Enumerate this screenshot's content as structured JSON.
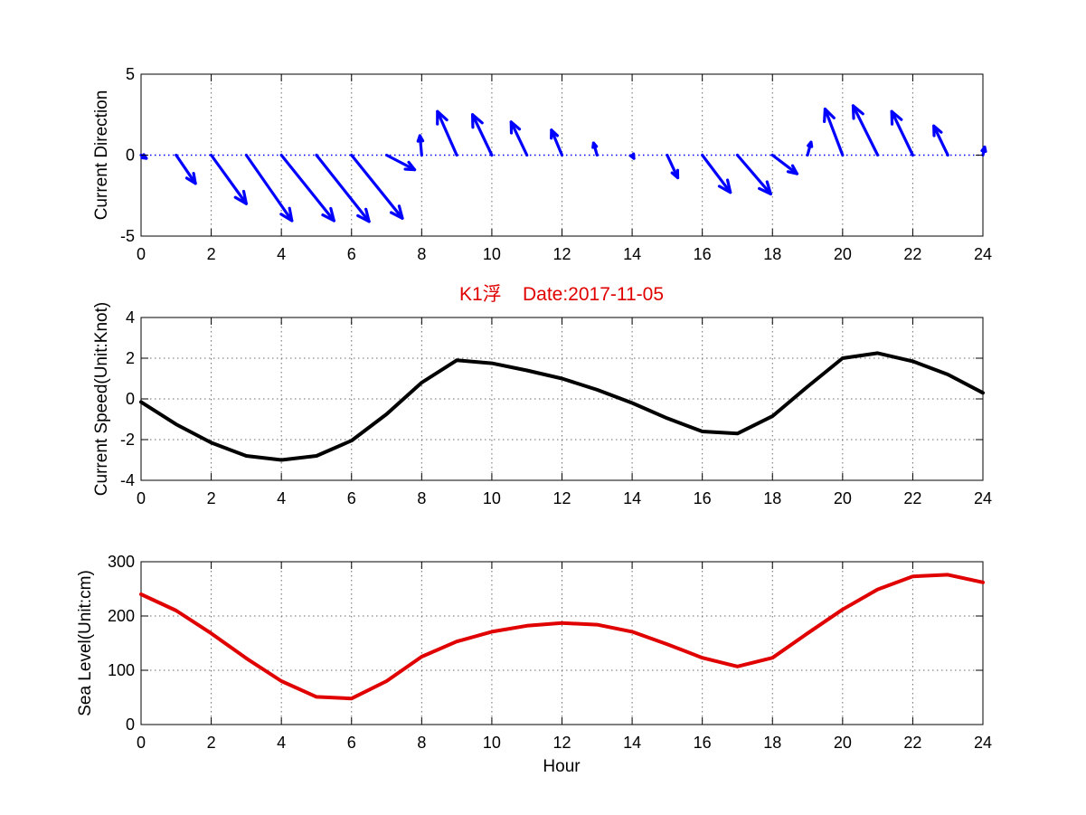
{
  "chart_data": [
    {
      "type": "quiver",
      "id": "direction",
      "title": "",
      "xlabel": "",
      "ylabel": "Current Direction",
      "xlim": [
        0,
        24
      ],
      "ylim": [
        -5,
        5
      ],
      "xticks": [
        0,
        2,
        4,
        6,
        8,
        10,
        12,
        14,
        16,
        18,
        20,
        22,
        24
      ],
      "yticks": [
        -5,
        0,
        5
      ],
      "grid": true,
      "color": "#0000ff",
      "x": [
        0,
        1,
        2,
        3,
        4,
        5,
        6,
        7,
        8,
        9,
        10,
        11,
        12,
        13,
        14,
        15,
        16,
        17,
        18,
        19,
        20,
        21,
        22,
        23,
        24
      ],
      "u": [
        0.15,
        0.55,
        1.0,
        1.3,
        1.5,
        1.5,
        1.45,
        0.8,
        -0.05,
        -0.55,
        -0.55,
        -0.45,
        -0.3,
        -0.1,
        0.05,
        0.3,
        0.8,
        0.95,
        0.7,
        0.1,
        -0.5,
        -0.7,
        -0.6,
        -0.4,
        0.05
      ],
      "v": [
        -0.2,
        -1.75,
        -3.0,
        -4.05,
        -4.05,
        -4.1,
        -3.9,
        -0.9,
        1.2,
        2.7,
        2.5,
        2.05,
        1.55,
        0.75,
        -0.2,
        -1.4,
        -2.3,
        -2.4,
        -1.15,
        0.8,
        2.85,
        3.05,
        2.7,
        1.8,
        0.5
      ]
    },
    {
      "type": "line",
      "id": "speed",
      "title": "K1浮    Date:2017-11-05",
      "xlabel": "",
      "ylabel": "Current Speed(Unit:Knot)",
      "xlim": [
        0,
        24
      ],
      "ylim": [
        -4,
        4
      ],
      "xticks": [
        0,
        2,
        4,
        6,
        8,
        10,
        12,
        14,
        16,
        18,
        20,
        22,
        24
      ],
      "yticks": [
        -4,
        -2,
        0,
        2,
        4
      ],
      "grid": true,
      "series": [
        {
          "color": "#000000",
          "x": [
            0,
            1,
            2,
            3,
            4,
            5,
            6,
            7,
            8,
            9,
            10,
            11,
            12,
            13,
            14,
            15,
            16,
            17,
            18,
            19,
            20,
            21,
            22,
            23,
            24
          ],
          "y": [
            -0.15,
            -1.25,
            -2.15,
            -2.8,
            -3.0,
            -2.8,
            -2.05,
            -0.75,
            0.8,
            1.9,
            1.75,
            1.4,
            1.0,
            0.45,
            -0.2,
            -0.95,
            -1.6,
            -1.7,
            -0.85,
            0.6,
            2.0,
            2.25,
            1.85,
            1.2,
            0.3
          ]
        }
      ]
    },
    {
      "type": "line",
      "id": "sealevel",
      "title": "",
      "xlabel": "Hour",
      "ylabel": "Sea Level(Unit:cm)",
      "xlim": [
        0,
        24
      ],
      "ylim": [
        0,
        300
      ],
      "xticks": [
        0,
        2,
        4,
        6,
        8,
        10,
        12,
        14,
        16,
        18,
        20,
        22,
        24
      ],
      "yticks": [
        0,
        100,
        200,
        300
      ],
      "grid": true,
      "series": [
        {
          "color": "#e00000",
          "x": [
            0,
            1,
            2,
            3,
            4,
            5,
            6,
            7,
            8,
            9,
            10,
            11,
            12,
            13,
            14,
            15,
            16,
            17,
            18,
            19,
            20,
            21,
            22,
            23,
            24
          ],
          "y": [
            240,
            210,
            168,
            122,
            80,
            51,
            48,
            80,
            125,
            153,
            171,
            182,
            187,
            184,
            171,
            148,
            123,
            107,
            123,
            168,
            212,
            249,
            273,
            276,
            262
          ]
        }
      ]
    }
  ],
  "colors": {
    "title": "#e00000",
    "axes": "#000000",
    "grid": "#6a6a6a"
  }
}
